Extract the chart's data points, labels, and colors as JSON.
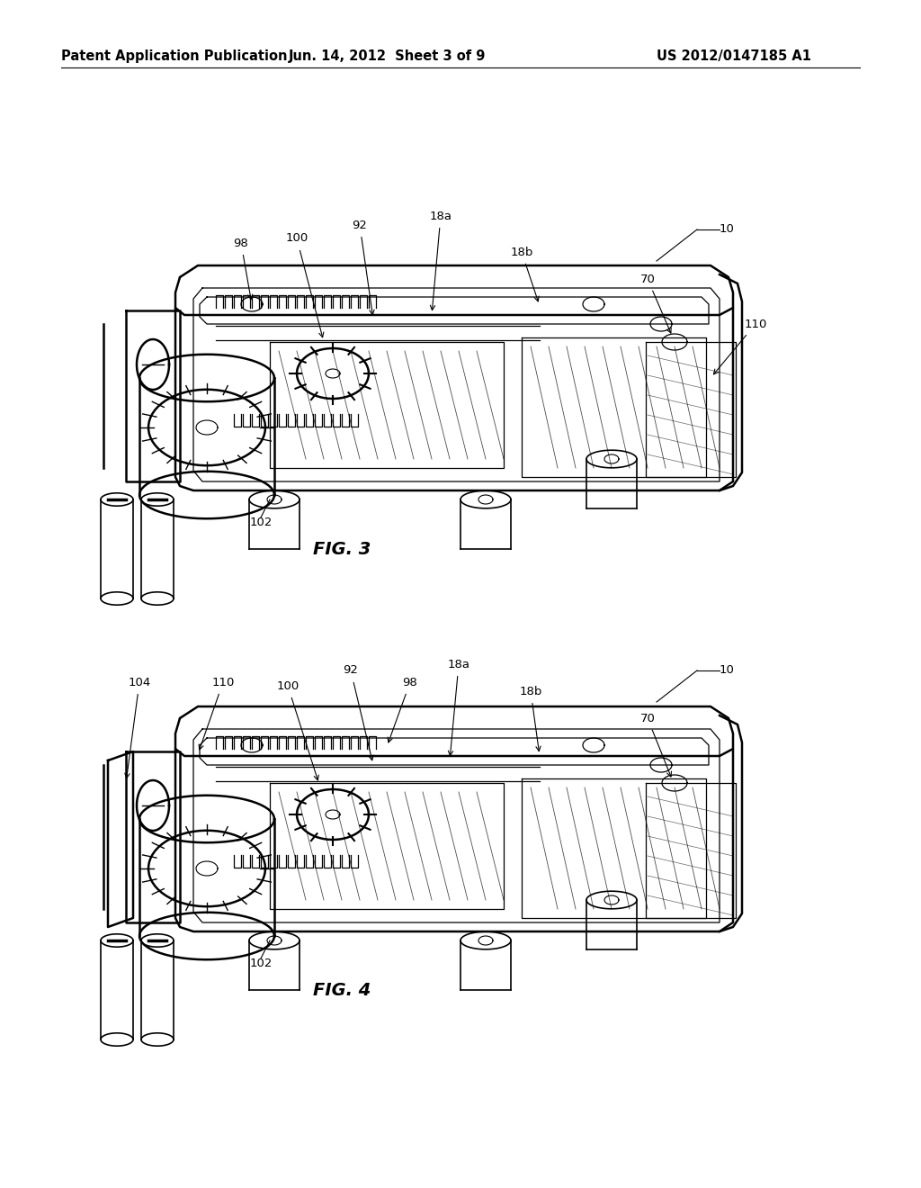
{
  "background_color": "#ffffff",
  "header_left": "Patent Application Publication",
  "header_center": "Jun. 14, 2012  Sheet 3 of 9",
  "header_right": "US 2012/0147185 A1",
  "header_fontsize": 10.5,
  "fig3_label": "FIG. 3",
  "fig4_label": "FIG. 4",
  "line_color": "#000000",
  "annotation_fontsize": 9.5,
  "fig_label_fontsize": 14
}
